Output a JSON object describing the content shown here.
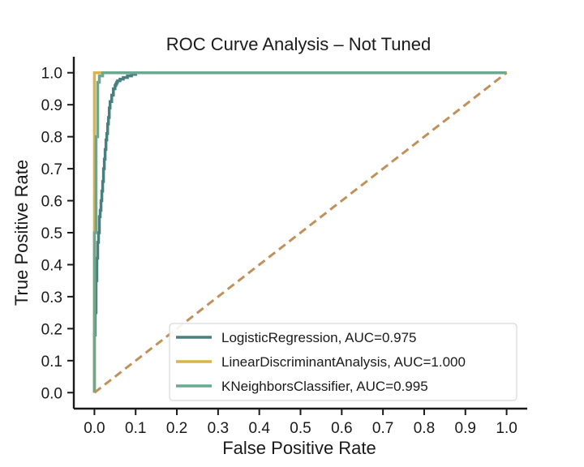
{
  "chart_data": {
    "type": "line",
    "title": "ROC Curve Analysis – Not Tuned",
    "xlabel": "False Positive Rate",
    "ylabel": "True Positive Rate",
    "xlim": [
      -0.05,
      1.05
    ],
    "ylim": [
      -0.05,
      1.05
    ],
    "xticks": [
      0.0,
      0.1,
      0.2,
      0.3,
      0.4,
      0.5,
      0.6,
      0.7,
      0.8,
      0.9,
      1.0
    ],
    "yticks": [
      0.0,
      0.1,
      0.2,
      0.3,
      0.4,
      0.5,
      0.6,
      0.7,
      0.8,
      0.9,
      1.0
    ],
    "xtick_labels": [
      "0.0",
      "0.1",
      "0.2",
      "0.3",
      "0.4",
      "0.5",
      "0.6",
      "0.7",
      "0.8",
      "0.9",
      "1.0"
    ],
    "ytick_labels": [
      "0.0",
      "0.1",
      "0.2",
      "0.3",
      "0.4",
      "0.5",
      "0.6",
      "0.7",
      "0.8",
      "0.9",
      "1.0"
    ],
    "grid": false,
    "legend_position": "lower-right",
    "series": [
      {
        "name": "LogisticRegression, AUC=0.975",
        "color": "#4a7f7f",
        "x": [
          0.0,
          0.0,
          0.002,
          0.002,
          0.004,
          0.004,
          0.006,
          0.006,
          0.008,
          0.008,
          0.01,
          0.01,
          0.012,
          0.012,
          0.014,
          0.014,
          0.016,
          0.016,
          0.018,
          0.018,
          0.02,
          0.02,
          0.022,
          0.022,
          0.024,
          0.024,
          0.026,
          0.026,
          0.028,
          0.028,
          0.03,
          0.03,
          0.032,
          0.032,
          0.034,
          0.034,
          0.036,
          0.036,
          0.038,
          0.038,
          0.042,
          0.042,
          0.046,
          0.046,
          0.05,
          0.05,
          0.052,
          0.052,
          0.054,
          0.054,
          0.056,
          0.056,
          0.062,
          0.062,
          0.07,
          0.07,
          0.08,
          0.08,
          0.09,
          0.09,
          0.1,
          0.1,
          1.0
        ],
        "y": [
          0.0,
          0.18,
          0.18,
          0.25,
          0.25,
          0.35,
          0.35,
          0.42,
          0.42,
          0.47,
          0.47,
          0.5,
          0.5,
          0.55,
          0.55,
          0.57,
          0.57,
          0.6,
          0.6,
          0.63,
          0.63,
          0.66,
          0.66,
          0.7,
          0.7,
          0.73,
          0.73,
          0.76,
          0.76,
          0.79,
          0.79,
          0.81,
          0.81,
          0.84,
          0.84,
          0.86,
          0.86,
          0.89,
          0.89,
          0.91,
          0.91,
          0.93,
          0.93,
          0.95,
          0.95,
          0.96,
          0.96,
          0.965,
          0.965,
          0.97,
          0.97,
          0.975,
          0.975,
          0.98,
          0.98,
          0.985,
          0.985,
          0.99,
          0.99,
          0.995,
          0.995,
          1.0,
          1.0
        ]
      },
      {
        "name": "LinearDiscriminantAnalysis, AUC=1.000",
        "color": "#d9b44a",
        "x": [
          0.0,
          0.0,
          1.0
        ],
        "y": [
          0.0,
          1.0,
          1.0
        ]
      },
      {
        "name": "KNeighborsClassifier, AUC=0.995",
        "color": "#6aa88f",
        "x": [
          0.0,
          0.0,
          0.004,
          0.004,
          0.008,
          0.008,
          0.012,
          0.012,
          0.02,
          0.02,
          1.0
        ],
        "y": [
          0.0,
          0.5,
          0.5,
          0.8,
          0.8,
          0.97,
          0.97,
          0.99,
          0.99,
          1.0,
          1.0
        ]
      }
    ],
    "reference_line": {
      "x": [
        0.0,
        1.0
      ],
      "y": [
        0.0,
        1.0
      ],
      "color": "#c0915a",
      "style": "dashed"
    }
  }
}
